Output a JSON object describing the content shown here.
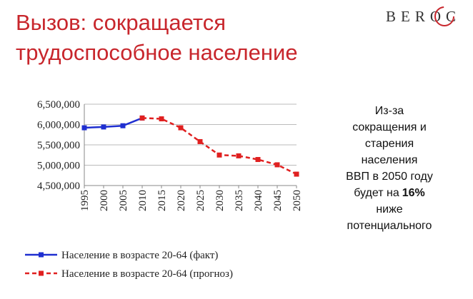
{
  "header": {
    "title": [
      "Вызов: сокращается",
      "трудоспособное население"
    ],
    "logo": "BEROC"
  },
  "chart_data": {
    "type": "line",
    "x": [
      1995,
      2000,
      2005,
      2010,
      2015,
      2020,
      2025,
      2030,
      2035,
      2040,
      2045,
      2050
    ],
    "series": [
      {
        "name": "Население в возрасте 20-64 (факт)",
        "color": "#1f2fd0",
        "dashed": false,
        "values": [
          5920000,
          5940000,
          5970000,
          6160000,
          null,
          null,
          null,
          null,
          null,
          null,
          null,
          null
        ]
      },
      {
        "name": "Население в возрасте 20-64 (прогноз)",
        "color": "#e02020",
        "dashed": true,
        "values": [
          null,
          null,
          null,
          6160000,
          6140000,
          5920000,
          5580000,
          5250000,
          5230000,
          5140000,
          5010000,
          4780000
        ]
      }
    ],
    "xlim": [
      1995,
      2050
    ],
    "xticks": [
      1995,
      2000,
      2005,
      2010,
      2015,
      2020,
      2025,
      2030,
      2035,
      2040,
      2045,
      2050
    ],
    "ylim": [
      4500000,
      6500000
    ],
    "yticks": [
      {
        "value": 4500000,
        "label": "4,500,000"
      },
      {
        "value": 5000000,
        "label": "5,000,000"
      },
      {
        "value": 5500000,
        "label": "5,500,000"
      },
      {
        "value": 6000000,
        "label": "6,000,000"
      },
      {
        "value": 6500000,
        "label": "6,500,000"
      }
    ],
    "grid": true,
    "legend": "bottom"
  },
  "annotation": [
    "Из-за",
    "сокращения и",
    "старения",
    "населения",
    "ВВП в 2050 году",
    "будет на",
    "16%",
    "ниже",
    "потенциального"
  ]
}
